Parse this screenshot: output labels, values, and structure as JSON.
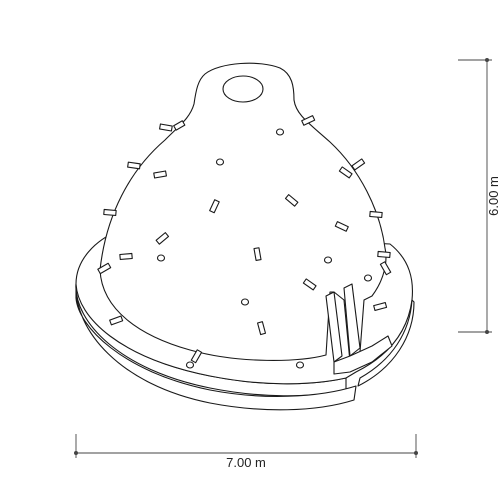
{
  "dimensions": {
    "width_label": "7.00 m",
    "height_label": "6.00 m"
  },
  "colors": {
    "line": "#1a1a1a",
    "dimension": "#444444",
    "background": "#ffffff"
  }
}
